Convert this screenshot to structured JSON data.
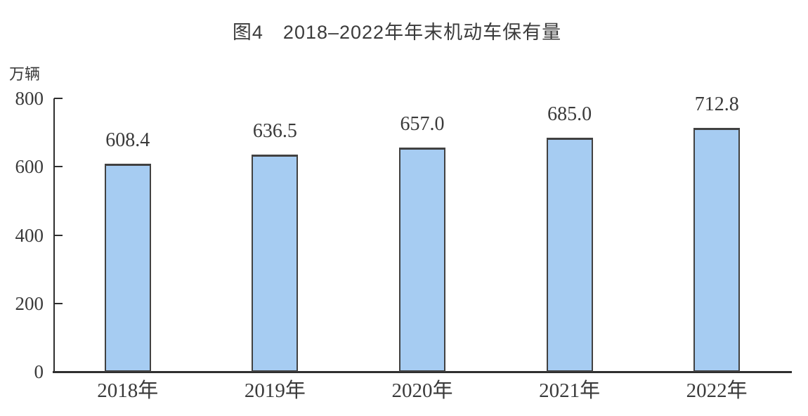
{
  "chart_data": {
    "type": "bar",
    "title": "图4　2018–2022年年末机动车保有量",
    "unit_label": "万辆",
    "categories": [
      "2018年",
      "2019年",
      "2020年",
      "2021年",
      "2022年"
    ],
    "values": [
      608.4,
      636.5,
      657.0,
      685.0,
      712.8
    ],
    "value_labels": [
      "608.4",
      "636.5",
      "657.0",
      "685.0",
      "712.8"
    ],
    "xlabel": "",
    "ylabel": "万辆",
    "ylim": [
      0,
      800
    ],
    "yticks": [
      0,
      200,
      400,
      600,
      800
    ],
    "grid": false,
    "legend": "none",
    "colors": {
      "bar_fill": "#A6CCF2",
      "bar_border": "#414141",
      "axis": "#2F2F2F",
      "text": "#3A3A3A",
      "background": "#FFFFFF"
    }
  }
}
